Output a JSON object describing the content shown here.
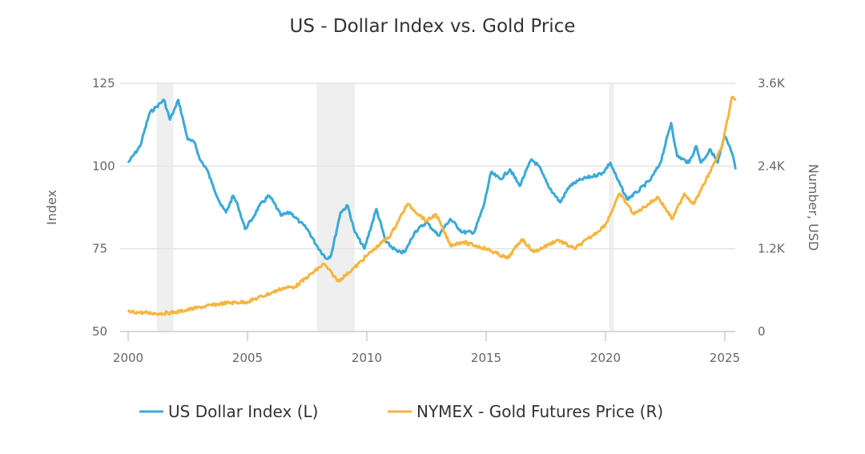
{
  "chart_data": {
    "type": "line",
    "title": "US - Dollar Index vs. Gold Price",
    "ylabel_left": "Index",
    "ylabel_right": "Number, USD",
    "xlim": [
      2000,
      2025.6
    ],
    "ylim_left": [
      50,
      125
    ],
    "ylim_right": [
      0,
      3600
    ],
    "x_ticks": [
      "2000",
      "2005",
      "2010",
      "2015",
      "2020",
      "2025"
    ],
    "x_tick_values": [
      2000,
      2005,
      2010,
      2015,
      2020,
      2025
    ],
    "y_left_ticks": [
      "125",
      "100",
      "75",
      "50"
    ],
    "y_left_tick_values": [
      125,
      100,
      75,
      50
    ],
    "y_right_ticks": [
      "3.6K",
      "2.4K",
      "1.2K",
      "0"
    ],
    "y_right_tick_values": [
      3600,
      2400,
      1200,
      0
    ],
    "grid": true,
    "legend_position": "bottom",
    "recessions": [
      [
        2001.2,
        2001.9
      ],
      [
        2007.9,
        2009.5
      ],
      [
        2020.15,
        2020.35
      ]
    ],
    "series": [
      {
        "name": "US Dollar Index (L)",
        "axis": "left",
        "color": "#3aa9d6",
        "x": [
          2000.0,
          2000.5,
          2000.9,
          2001.2,
          2001.5,
          2001.75,
          2002.0,
          2002.1,
          2002.5,
          2002.8,
          2003.0,
          2003.3,
          2003.5,
          2003.9,
          2004.1,
          2004.4,
          2004.6,
          2004.9,
          2005.2,
          2005.5,
          2005.9,
          2006.1,
          2006.4,
          2006.8,
          2007.2,
          2007.5,
          2007.9,
          2008.3,
          2008.5,
          2008.9,
          2009.2,
          2009.5,
          2009.9,
          2010.4,
          2010.8,
          2011.3,
          2011.6,
          2012.0,
          2012.5,
          2013.0,
          2013.5,
          2014.0,
          2014.5,
          2014.9,
          2015.2,
          2015.6,
          2016.0,
          2016.4,
          2016.9,
          2017.2,
          2017.6,
          2018.1,
          2018.5,
          2019.0,
          2019.5,
          2019.9,
          2020.2,
          2020.5,
          2020.9,
          2021.3,
          2021.9,
          2022.3,
          2022.75,
          2023.0,
          2023.5,
          2023.8,
          2024.0,
          2024.4,
          2024.7,
          2025.0,
          2025.3,
          2025.45
        ],
        "values": [
          101,
          106,
          116,
          118,
          120,
          114,
          118,
          120,
          108,
          107,
          102,
          99,
          95,
          88,
          86,
          91,
          88,
          81,
          84,
          88,
          91,
          89,
          85,
          86,
          83,
          81,
          76,
          72,
          73,
          86,
          88,
          80,
          75,
          87,
          77,
          74,
          74,
          80,
          83,
          79,
          84,
          80,
          80,
          88,
          98,
          96,
          99,
          94,
          102,
          100,
          94,
          89,
          94,
          96,
          97,
          98,
          101,
          96,
          90,
          92,
          96,
          101,
          113,
          103,
          101,
          106,
          101,
          105,
          101,
          109,
          104,
          99
        ]
      },
      {
        "name": "NYMEX - Gold Futures Price (R)",
        "axis": "right",
        "color": "#f5b53f",
        "x": [
          2000.0,
          2000.5,
          2001.3,
          2002.0,
          2003.0,
          2004.0,
          2005.0,
          2006.0,
          2006.5,
          2007.0,
          2008.2,
          2008.8,
          2009.5,
          2010.0,
          2011.0,
          2011.7,
          2012.5,
          2012.9,
          2013.5,
          2014.0,
          2015.0,
          2015.9,
          2016.5,
          2017.0,
          2018.0,
          2018.7,
          2019.5,
          2020.0,
          2020.6,
          2021.2,
          2022.2,
          2022.8,
          2023.3,
          2023.7,
          2024.0,
          2024.5,
          2024.9,
          2025.3,
          2025.45
        ],
        "values": [
          285,
          275,
          260,
          280,
          350,
          410,
          430,
          560,
          630,
          650,
          980,
          730,
          930,
          1100,
          1400,
          1850,
          1600,
          1700,
          1250,
          1300,
          1200,
          1060,
          1340,
          1150,
          1330,
          1200,
          1400,
          1550,
          2000,
          1700,
          1950,
          1630,
          2000,
          1850,
          2050,
          2400,
          2700,
          3400,
          3350
        ]
      }
    ]
  }
}
